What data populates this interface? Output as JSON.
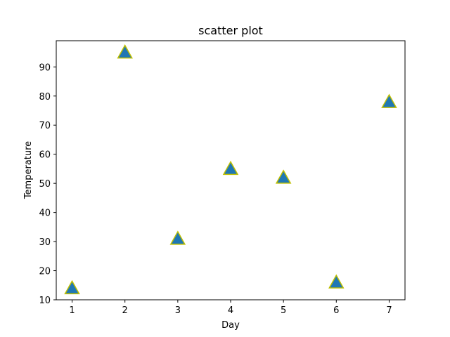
{
  "chart_data": {
    "type": "scatter",
    "title": "scatter plot",
    "xlabel": "Day",
    "ylabel": "Temperature",
    "x": [
      1,
      2,
      3,
      4,
      5,
      6,
      7
    ],
    "y": [
      14,
      95,
      31,
      55,
      52,
      16,
      78
    ],
    "xlim": [
      0.7,
      7.3
    ],
    "ylim": [
      10,
      99
    ],
    "xticks": [
      1,
      2,
      3,
      4,
      5,
      6,
      7
    ],
    "yticks": [
      10,
      20,
      30,
      40,
      50,
      60,
      70,
      80,
      90
    ],
    "marker": "triangle-up",
    "marker_fill": "#1f77b4",
    "marker_edge": "#bfbf00",
    "grid": false,
    "legend": "none"
  }
}
